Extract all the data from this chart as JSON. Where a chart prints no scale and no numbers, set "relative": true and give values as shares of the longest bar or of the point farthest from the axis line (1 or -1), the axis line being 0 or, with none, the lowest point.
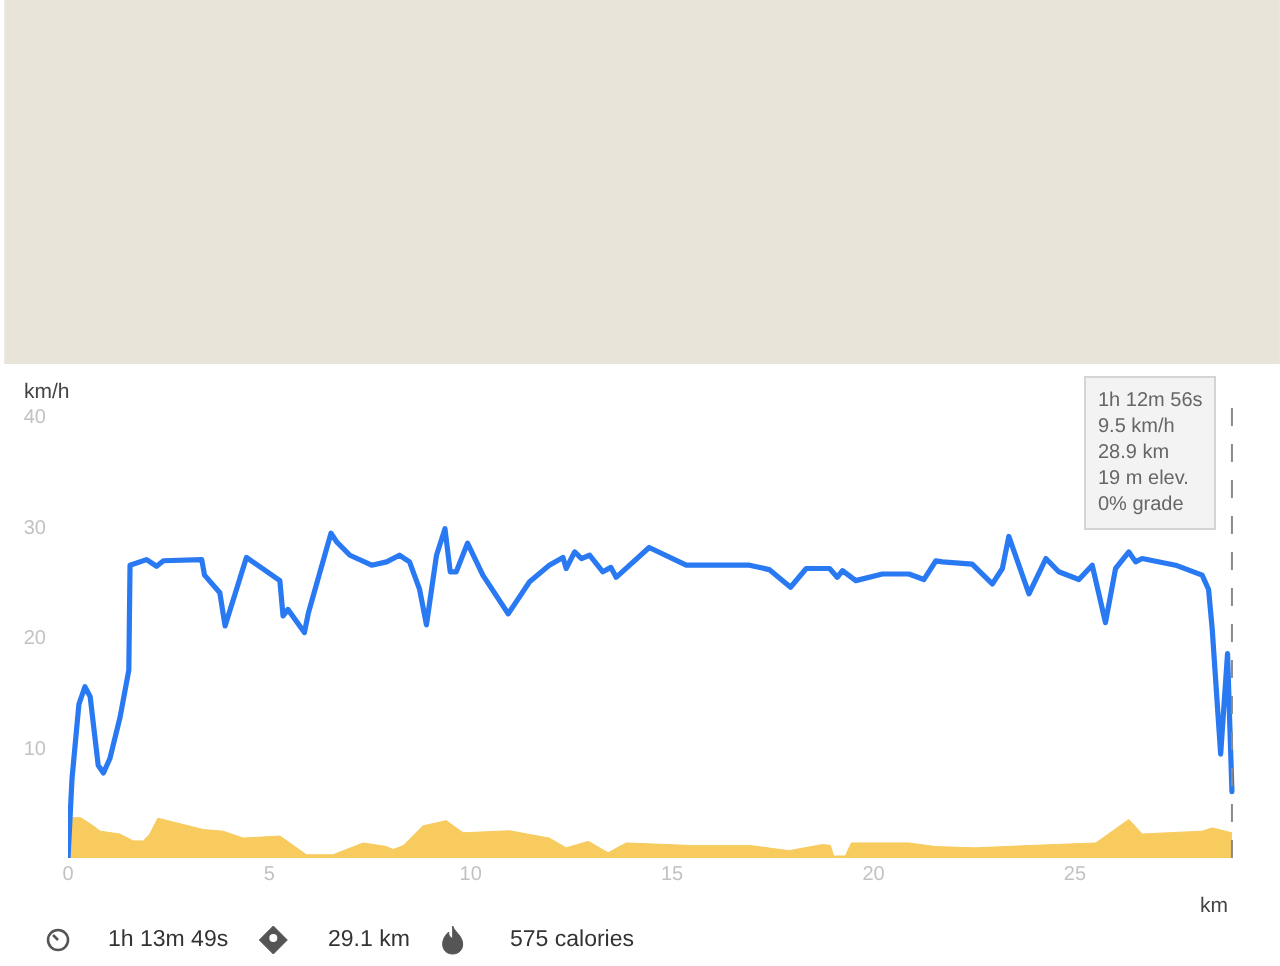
{
  "chart_data": [
    {
      "type": "line",
      "xlabel": "km",
      "ylabel": "km/h",
      "color": "#2979f2",
      "x": [
        0,
        0.1,
        0.27,
        0.42,
        0.55,
        0.63,
        0.75,
        0.88,
        1.04,
        1.29,
        1.51,
        1.54,
        1.95,
        2.2,
        2.37,
        3.32,
        3.39,
        3.77,
        3.9,
        4.43,
        5.26,
        5.34,
        5.46,
        5.87,
        5.97,
        6.53,
        6.67,
        7.0,
        7.54,
        7.91,
        8.23,
        8.48,
        8.73,
        8.9,
        9.15,
        9.36,
        9.49,
        9.64,
        9.92,
        10.3,
        10.93,
        11.46,
        11.95,
        12.29,
        12.37,
        12.58,
        12.75,
        12.95,
        13.28,
        13.48,
        13.61,
        14.43,
        15.35,
        16.92,
        17.41,
        17.94,
        18.33,
        18.91,
        19.1,
        19.23,
        19.56,
        20.22,
        20.88,
        21.25,
        21.55,
        21.71,
        22.45,
        22.95,
        23.2,
        23.36,
        23.86,
        24.28,
        24.6,
        25.1,
        25.43,
        25.76,
        26.01,
        26.34,
        26.51,
        26.67,
        27.5,
        28.16,
        28.32,
        28.41,
        28.62,
        28.79,
        28.9
      ],
      "values": [
        0,
        7.2,
        13.9,
        15.5,
        14.6,
        12.1,
        8.4,
        7.7,
        9.0,
        12.7,
        17.0,
        26.5,
        27.0,
        26.4,
        26.9,
        27.0,
        25.6,
        24.0,
        21.0,
        27.2,
        25.1,
        21.9,
        22.5,
        20.4,
        22.2,
        29.4,
        28.6,
        27.4,
        26.5,
        26.8,
        27.4,
        26.8,
        24.3,
        21.1,
        27.4,
        29.8,
        25.9,
        25.9,
        28.5,
        25.6,
        22.1,
        25.0,
        26.5,
        27.2,
        26.2,
        27.7,
        27.1,
        27.4,
        25.9,
        26.3,
        25.4,
        28.1,
        26.5,
        26.5,
        26.1,
        24.5,
        26.2,
        26.2,
        25.4,
        26.0,
        25.1,
        25.7,
        25.7,
        25.2,
        26.9,
        26.8,
        26.6,
        24.8,
        26.2,
        29.1,
        23.9,
        27.1,
        25.9,
        25.2,
        26.5,
        21.3,
        26.2,
        27.7,
        26.8,
        27.1,
        26.5,
        25.6,
        24.3,
        20.7,
        9.4,
        18.5,
        6.0
      ],
      "xlim": [
        0,
        29.1
      ],
      "xticks": [
        0,
        5,
        10,
        15,
        20,
        25
      ],
      "ylim": [
        0,
        40
      ],
      "yticks": [
        10,
        20,
        30,
        40
      ],
      "ref_lines": [
        {
          "axis": "x",
          "value": 28.9,
          "line_style": "dashed",
          "color": "#8a8a8a"
        }
      ],
      "annotations": [
        {
          "text": "1h 12m 56s\n9.5 km/h\n28.9 km\n19 m elev.\n0% grade",
          "x": 28.9
        },
        "1h 13m 49s",
        "29.1 km",
        "575 calories"
      ]
    },
    {
      "type": "area",
      "relative": true,
      "color": "#f7cb5d",
      "xlim": [
        0,
        29.1
      ],
      "tick_labels": false,
      "x": [
        0,
        0.3,
        0.63,
        0.8,
        1.29,
        1.62,
        1.87,
        2.03,
        2.23,
        3.36,
        3.85,
        4.35,
        5.26,
        5.38,
        5.92,
        6.58,
        7.33,
        7.91,
        8.07,
        8.32,
        8.81,
        9.31,
        9.39,
        9.81,
        10.96,
        11.95,
        12.37,
        12.92,
        13.41,
        13.86,
        15.43,
        16.92,
        17.9,
        18.73,
        18.93,
        19.01,
        19.3,
        19.45,
        20.88,
        21.55,
        22.54,
        23.7,
        25.52,
        26.34,
        26.67,
        28.16,
        28.41,
        28.9
      ],
      "values": [
        1.0,
        1.0,
        0.79,
        0.66,
        0.59,
        0.42,
        0.42,
        0.59,
        0.98,
        0.7,
        0.66,
        0.49,
        0.54,
        0.46,
        0.08,
        0.08,
        0.37,
        0.28,
        0.21,
        0.3,
        0.79,
        0.9,
        0.92,
        0.62,
        0.67,
        0.49,
        0.25,
        0.41,
        0.13,
        0.37,
        0.31,
        0.31,
        0.18,
        0.33,
        0.31,
        0.05,
        0.05,
        0.37,
        0.37,
        0.28,
        0.25,
        0.3,
        0.37,
        0.95,
        0.59,
        0.66,
        0.74,
        0.62
      ]
    }
  ]
}
